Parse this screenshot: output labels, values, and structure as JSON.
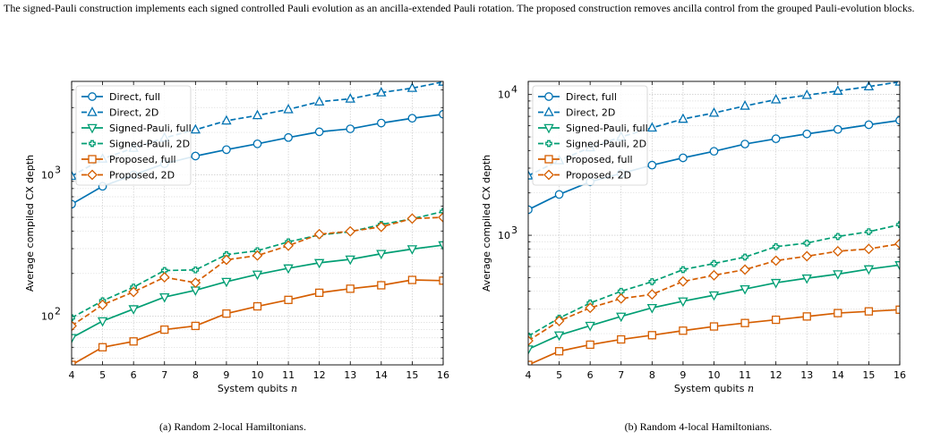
{
  "intro_text": "The signed-Pauli construction implements each signed controlled Pauli evolution as an ancilla-extended Pauli rotation. The proposed construction removes ancilla control from the grouped Pauli-evolution blocks.",
  "captions": {
    "a": "(a) Random 2-local Hamiltonians.",
    "b": "(b) Random 4-local Hamiltonians."
  },
  "colors": {
    "direct": "#0072b2",
    "signed_pauli": "#009e73",
    "proposed": "#d55e00"
  },
  "chart_data": [
    {
      "type": "line",
      "xlabel": "System qubits n",
      "ylabel": "Average compiled CX depth",
      "y_scale": "log",
      "xlim": [
        4,
        16
      ],
      "ylim": [
        45,
        4600
      ],
      "x_ticks": [
        4,
        5,
        6,
        7,
        8,
        9,
        10,
        11,
        12,
        13,
        14,
        15,
        16
      ],
      "y_ticks": [
        {
          "value": 100,
          "label": "10^2"
        },
        {
          "value": 1000,
          "label": "10^3"
        }
      ],
      "grid": true,
      "legend_position": "top-left",
      "x": [
        4,
        5,
        6,
        7,
        8,
        9,
        10,
        11,
        12,
        13,
        14,
        15,
        16
      ],
      "series": [
        {
          "name": "Direct, full",
          "color": "direct",
          "dash": "solid",
          "marker": "circle",
          "values": [
            620,
            830,
            1000,
            1200,
            1360,
            1510,
            1660,
            1840,
            2020,
            2120,
            2330,
            2520,
            2690
          ]
        },
        {
          "name": "Direct, 2D",
          "color": "direct",
          "dash": "dashed",
          "marker": "triangle-up",
          "values": [
            980,
            1300,
            1550,
            1830,
            2090,
            2420,
            2640,
            2910,
            3300,
            3460,
            3830,
            4120,
            4560
          ]
        },
        {
          "name": "Signed-Pauli, full",
          "color": "signed_pauli",
          "dash": "solid",
          "marker": "triangle-down",
          "values": [
            70,
            92,
            112,
            136,
            152,
            175,
            197,
            218,
            238,
            252,
            276,
            298,
            318
          ]
        },
        {
          "name": "Signed-Pauli, 2D",
          "color": "signed_pauli",
          "dash": "dashed",
          "marker": "plus",
          "values": [
            97,
            128,
            160,
            210,
            212,
            272,
            290,
            335,
            375,
            395,
            445,
            488,
            550
          ]
        },
        {
          "name": "Proposed, full",
          "color": "proposed",
          "dash": "solid",
          "marker": "square",
          "values": [
            45,
            60,
            66,
            80,
            85,
            104,
            117,
            130,
            146,
            156,
            165,
            180,
            178
          ]
        },
        {
          "name": "Proposed, 2D",
          "color": "proposed",
          "dash": "dashed",
          "marker": "diamond",
          "values": [
            85,
            120,
            148,
            188,
            172,
            250,
            268,
            315,
            380,
            398,
            428,
            490,
            500
          ]
        }
      ]
    },
    {
      "type": "line",
      "xlabel": "System qubits n",
      "ylabel": "Average compiled CX depth",
      "y_scale": "log",
      "xlim": [
        4,
        16
      ],
      "ylim": [
        120,
        12400
      ],
      "x_ticks": [
        4,
        5,
        6,
        7,
        8,
        9,
        10,
        11,
        12,
        13,
        14,
        15,
        16
      ],
      "y_ticks": [
        {
          "value": 1000,
          "label": "10^3"
        },
        {
          "value": 10000,
          "label": "10^4"
        }
      ],
      "grid": true,
      "legend_position": "top-left",
      "x": [
        4,
        5,
        6,
        7,
        8,
        9,
        10,
        11,
        12,
        13,
        14,
        15,
        16
      ],
      "series": [
        {
          "name": "Direct, full",
          "color": "direct",
          "dash": "solid",
          "marker": "circle",
          "values": [
            1520,
            1950,
            2400,
            2750,
            3150,
            3550,
            3950,
            4450,
            4850,
            5250,
            5650,
            6100,
            6550
          ]
        },
        {
          "name": "Direct, 2D",
          "color": "direct",
          "dash": "dashed",
          "marker": "triangle-up",
          "values": [
            2650,
            3400,
            4200,
            5000,
            5800,
            6700,
            7400,
            8300,
            9200,
            9900,
            10600,
            11400,
            12300
          ]
        },
        {
          "name": "Signed-Pauli, full",
          "color": "signed_pauli",
          "dash": "solid",
          "marker": "triangle-down",
          "values": [
            155,
            195,
            228,
            265,
            305,
            340,
            375,
            415,
            460,
            495,
            530,
            575,
            615
          ]
        },
        {
          "name": "Signed-Pauli, 2D",
          "color": "signed_pauli",
          "dash": "dashed",
          "marker": "plus",
          "values": [
            192,
            258,
            330,
            400,
            468,
            570,
            630,
            700,
            830,
            880,
            980,
            1060,
            1190
          ]
        },
        {
          "name": "Proposed, full",
          "color": "proposed",
          "dash": "solid",
          "marker": "square",
          "values": [
            120,
            150,
            167,
            182,
            195,
            210,
            225,
            238,
            251,
            265,
            280,
            288,
            296
          ]
        },
        {
          "name": "Proposed, 2D",
          "color": "proposed",
          "dash": "dashed",
          "marker": "diamond",
          "values": [
            178,
            246,
            305,
            355,
            380,
            470,
            520,
            570,
            660,
            710,
            770,
            800,
            870
          ]
        }
      ]
    }
  ]
}
